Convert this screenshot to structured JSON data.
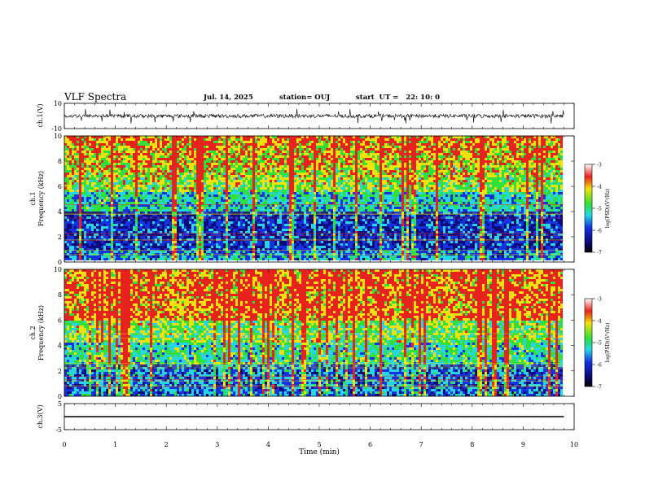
{
  "header": {
    "title": "VLF Spectra",
    "date": "Jul. 14, 2025",
    "station": "station= OUJ",
    "start_ut": "start  UT =   22: 10: 0"
  },
  "colorbar": {
    "label": "log(PSD)(V²/Hz)",
    "ticks": [
      "-3",
      "-4",
      "-5",
      "-6",
      "-7"
    ]
  },
  "chart_data": [
    {
      "type": "line",
      "panel": "ch1-waveform",
      "ylabel": "ch.1(V)",
      "ylim": [
        -10,
        10
      ],
      "yticks": [
        "10",
        "-10"
      ],
      "description_values": {
        "baseline": 0
      }
    },
    {
      "type": "heatmap",
      "panel": "ch1-spectrogram",
      "ylabel": "ch.1\nFrequency (kHz)",
      "ylim": [
        0,
        10
      ],
      "yticks": [
        "10",
        "8",
        "6",
        "4",
        "2",
        "0"
      ],
      "zlim": [
        -7,
        -3
      ]
    },
    {
      "type": "heatmap",
      "panel": "ch2-spectrogram",
      "ylabel": "ch.2\nFrequency (kHz)",
      "ylim": [
        0,
        10
      ],
      "yticks": [
        "10",
        "8",
        "6",
        "4",
        "2",
        "0"
      ],
      "zlim": [
        -7,
        -3
      ]
    },
    {
      "type": "line",
      "panel": "ch3-waveform",
      "ylabel": "ch.3(V)",
      "ylim": [
        -5,
        5
      ],
      "yticks": [
        "5",
        "-5"
      ],
      "values": [
        {
          "x": 0,
          "y": 0
        },
        {
          "x": 9.8,
          "y": 0
        }
      ]
    }
  ],
  "xaxis": {
    "label": "Time (min)",
    "xlim": [
      0,
      10
    ],
    "ticks": [
      "0",
      "1",
      "2",
      "3",
      "4",
      "5",
      "6",
      "7",
      "8",
      "9",
      "10"
    ]
  },
  "colors": {
    "red": "#e8231d",
    "yellow": "#f2e10a",
    "green": "#2fe03a",
    "cyan": "#26d6e6",
    "blue": "#1432e0",
    "navy": "#0a0a7a"
  }
}
